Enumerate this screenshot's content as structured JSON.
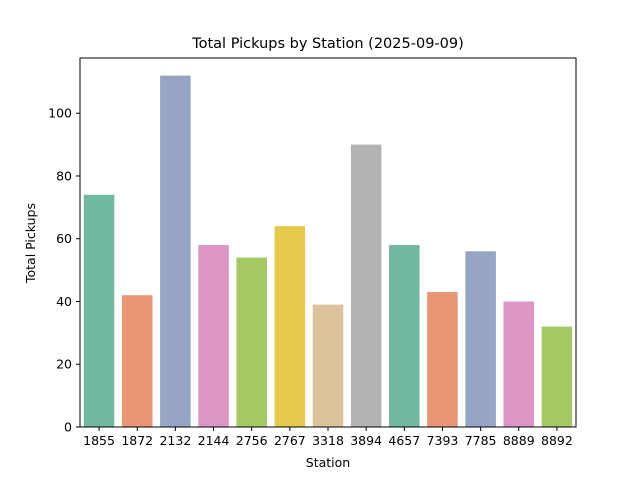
{
  "chart_data": {
    "type": "bar",
    "title": "Total Pickups by Station (2025-09-09)",
    "xlabel": "Station",
    "ylabel": "Total Pickups",
    "categories": [
      "1855",
      "1872",
      "2132",
      "2144",
      "2756",
      "2767",
      "3318",
      "3894",
      "4657",
      "7393",
      "7785",
      "8889",
      "8892"
    ],
    "values": [
      74,
      42,
      112,
      58,
      54,
      64,
      39,
      90,
      58,
      43,
      56,
      40,
      32
    ],
    "colors": [
      "#72b7a0",
      "#e99673",
      "#96a5c4",
      "#dd96c3",
      "#a3c864",
      "#e5c94a",
      "#dcc39a",
      "#b3b3b3",
      "#72b7a0",
      "#e99673",
      "#96a5c4",
      "#dd96c3",
      "#a3c864"
    ],
    "ylim": [
      0,
      117.6
    ],
    "yticks": [
      0,
      20,
      40,
      60,
      80,
      100
    ],
    "grid": false,
    "legend": "none"
  }
}
